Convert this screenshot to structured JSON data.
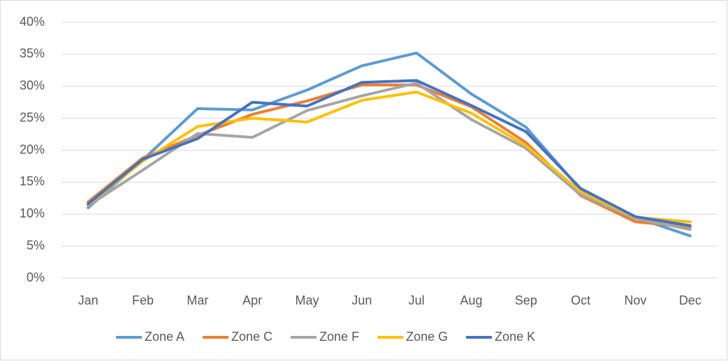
{
  "chart_data": {
    "type": "line",
    "categories": [
      "Jan",
      "Feb",
      "Mar",
      "Apr",
      "May",
      "Jun",
      "Jul",
      "Aug",
      "Sep",
      "Oct",
      "Nov",
      "Dec"
    ],
    "series": [
      {
        "name": "Zone A",
        "color": "#5b9bd5",
        "values": [
          11.0,
          18.5,
          26.5,
          26.3,
          29.4,
          33.2,
          35.2,
          28.8,
          23.6,
          13.8,
          9.5,
          6.6
        ]
      },
      {
        "name": "Zone C",
        "color": "#ed7d31",
        "values": [
          11.9,
          18.8,
          22.3,
          25.6,
          27.7,
          30.2,
          30.2,
          26.8,
          21.2,
          12.9,
          8.8,
          8.0
        ]
      },
      {
        "name": "Zone F",
        "color": "#a5a5a5",
        "values": [
          11.3,
          16.9,
          22.6,
          22.0,
          26.2,
          28.5,
          30.5,
          24.8,
          20.3,
          13.0,
          9.3,
          7.6
        ]
      },
      {
        "name": "Zone G",
        "color": "#ffc000",
        "values": [
          11.5,
          18.3,
          23.7,
          25.0,
          24.4,
          27.8,
          29.1,
          25.8,
          20.7,
          13.5,
          9.5,
          8.8
        ]
      },
      {
        "name": "Zone K",
        "color": "#4472c4",
        "values": [
          11.6,
          18.6,
          21.8,
          27.5,
          26.9,
          30.6,
          30.9,
          27.0,
          22.9,
          14.0,
          9.6,
          8.2
        ]
      }
    ],
    "ylim": [
      0,
      40
    ],
    "yticks": [
      {
        "value": 0,
        "label": "0%"
      },
      {
        "value": 5,
        "label": "5%"
      },
      {
        "value": 10,
        "label": "10%"
      },
      {
        "value": 15,
        "label": "15%"
      },
      {
        "value": 20,
        "label": "20%"
      },
      {
        "value": 25,
        "label": "25%"
      },
      {
        "value": 30,
        "label": "30%"
      },
      {
        "value": 35,
        "label": "35%"
      },
      {
        "value": 40,
        "label": "40%"
      }
    ],
    "grid": true,
    "legend": "bottom"
  }
}
